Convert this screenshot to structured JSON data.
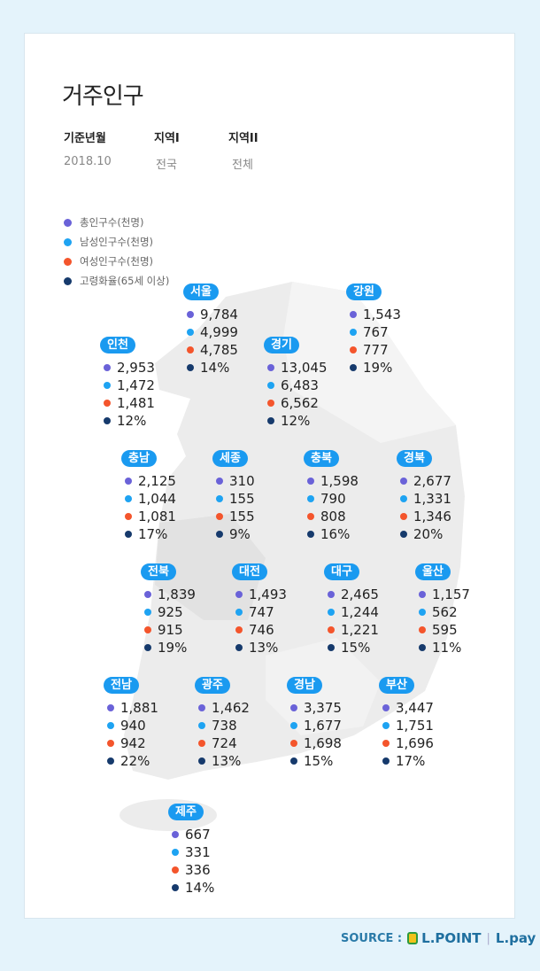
{
  "title": "거주인구",
  "meta": {
    "headers": [
      "기준년월",
      "지역I",
      "지역II"
    ],
    "values": [
      "2018.10",
      "전국",
      "전체"
    ]
  },
  "colors": {
    "total": "#6a62d8",
    "male": "#1ea3f2",
    "female": "#f4552c",
    "elderly": "#163a6c",
    "badge": "#1a9af0"
  },
  "legend": [
    "총인구수(천명)",
    "남성인구수(천명)",
    "여성인구수(천명)",
    "고령화율(65세 이상)"
  ],
  "regions": [
    {
      "name": "서울",
      "values": [
        "9,784",
        "4,999",
        "4,785",
        "14%"
      ]
    },
    {
      "name": "강원",
      "values": [
        "1,543",
        "767",
        "777",
        "19%"
      ]
    },
    {
      "name": "인천",
      "values": [
        "2,953",
        "1,472",
        "1,481",
        "12%"
      ]
    },
    {
      "name": "경기",
      "values": [
        "13,045",
        "6,483",
        "6,562",
        "12%"
      ]
    },
    {
      "name": "충남",
      "values": [
        "2,125",
        "1,044",
        "1,081",
        "17%"
      ]
    },
    {
      "name": "세종",
      "values": [
        "310",
        "155",
        "155",
        "9%"
      ]
    },
    {
      "name": "충북",
      "values": [
        "1,598",
        "790",
        "808",
        "16%"
      ]
    },
    {
      "name": "경북",
      "values": [
        "2,677",
        "1,331",
        "1,346",
        "20%"
      ]
    },
    {
      "name": "전북",
      "values": [
        "1,839",
        "925",
        "915",
        "19%"
      ]
    },
    {
      "name": "대전",
      "values": [
        "1,493",
        "747",
        "746",
        "13%"
      ]
    },
    {
      "name": "대구",
      "values": [
        "2,465",
        "1,244",
        "1,221",
        "15%"
      ]
    },
    {
      "name": "울산",
      "values": [
        "1,157",
        "562",
        "595",
        "11%"
      ]
    },
    {
      "name": "전남",
      "values": [
        "1,881",
        "940",
        "942",
        "22%"
      ]
    },
    {
      "name": "광주",
      "values": [
        "1,462",
        "738",
        "724",
        "13%"
      ]
    },
    {
      "name": "경남",
      "values": [
        "3,375",
        "1,677",
        "1,698",
        "15%"
      ]
    },
    {
      "name": "부산",
      "values": [
        "3,447",
        "1,751",
        "1,696",
        "17%"
      ]
    },
    {
      "name": "제주",
      "values": [
        "667",
        "331",
        "336",
        "14%"
      ]
    }
  ],
  "source": {
    "label": "SOURCE :",
    "brand1": "L.POINT",
    "brand2": "L.pay"
  }
}
